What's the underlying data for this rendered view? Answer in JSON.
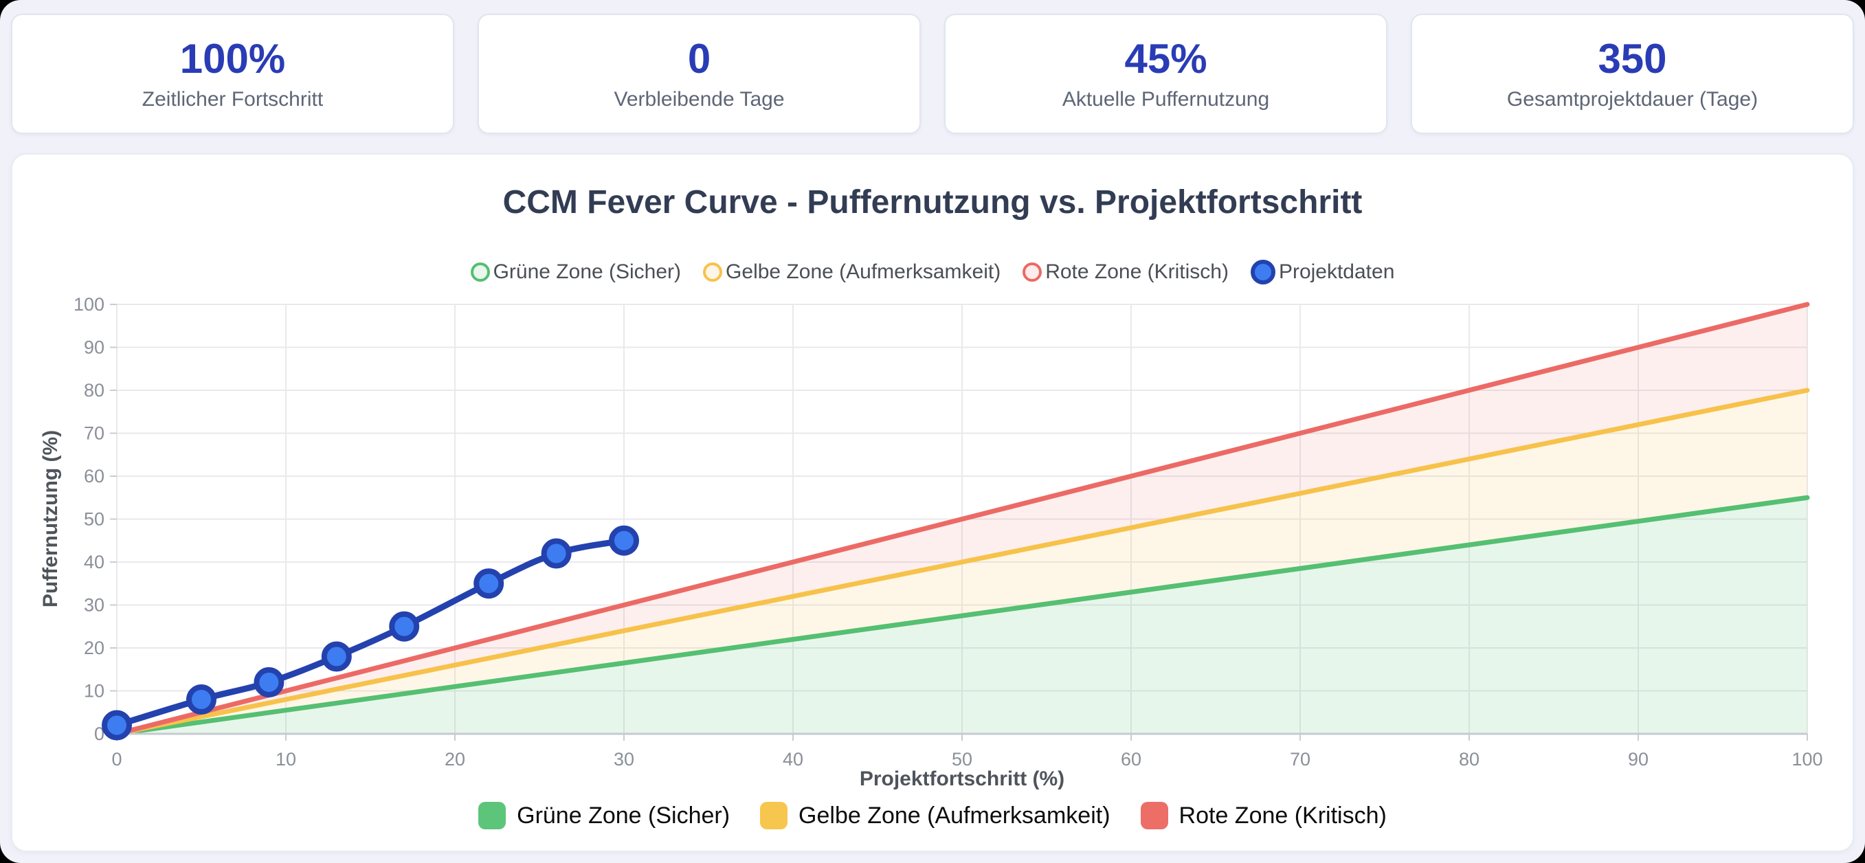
{
  "stats": [
    {
      "value": "100%",
      "label": "Zeitlicher Fortschritt"
    },
    {
      "value": "0",
      "label": "Verbleibende Tage"
    },
    {
      "value": "45%",
      "label": "Aktuelle Puffernutzung"
    },
    {
      "value": "350",
      "label": "Gesamtprojektdauer (Tage)"
    }
  ],
  "colors": {
    "background": "#f1f2f9",
    "card_background": "#ffffff",
    "stat_value_blue": "#2a3cb5",
    "stat_label_gray": "#5d6676",
    "chart_title": "#323d54",
    "tick_label_gray": "#8a8f98",
    "grid_line": "#e9e9ec"
  },
  "chart_data": {
    "type": "line",
    "title": "CCM Fever Curve - Puffernutzung vs. Projektfortschritt",
    "xlabel": "Projektfortschritt (%)",
    "ylabel": "Puffernutzung (%)",
    "xlim": [
      0,
      100
    ],
    "ylim": [
      0,
      100
    ],
    "x_ticks": [
      0,
      10,
      20,
      30,
      40,
      50,
      60,
      70,
      80,
      90,
      100
    ],
    "y_ticks": [
      0,
      10,
      20,
      30,
      40,
      50,
      60,
      70,
      80,
      90,
      100
    ],
    "grid": true,
    "legend_position": "top",
    "zones": [
      {
        "label": "Grüne Zone (Sicher)",
        "from": [
          0,
          0
        ],
        "to": [
          100,
          55
        ],
        "line_color": "#55bf72",
        "fill_color": "rgba(85,191,114,0.14)",
        "legend_marker_fill": "#eaf7ee",
        "swatch_color": "#5dc579"
      },
      {
        "label": "Gelbe Zone (Aufmerksamkeit)",
        "from": [
          0,
          0
        ],
        "to": [
          100,
          80
        ],
        "line_color": "#f7c24b",
        "fill_color": "rgba(247,194,75,0.13)",
        "legend_marker_fill": "#fdf5e6",
        "swatch_color": "#f7c64f"
      },
      {
        "label": "Rote Zone (Kritisch)",
        "from": [
          0,
          0
        ],
        "to": [
          100,
          100
        ],
        "line_color": "#ec6a65",
        "fill_color": "rgba(236,106,101,0.11)",
        "legend_marker_fill": "#fdeceb",
        "swatch_color": "#ed6e66"
      }
    ],
    "series": [
      {
        "name": "Projektdaten",
        "x": [
          0,
          5,
          9,
          13,
          17,
          22,
          26,
          30
        ],
        "y": [
          2,
          8,
          12,
          18,
          25,
          35,
          42,
          45
        ],
        "line_color": "#2342ae",
        "point_fill_color": "#3e7cf2"
      }
    ]
  }
}
